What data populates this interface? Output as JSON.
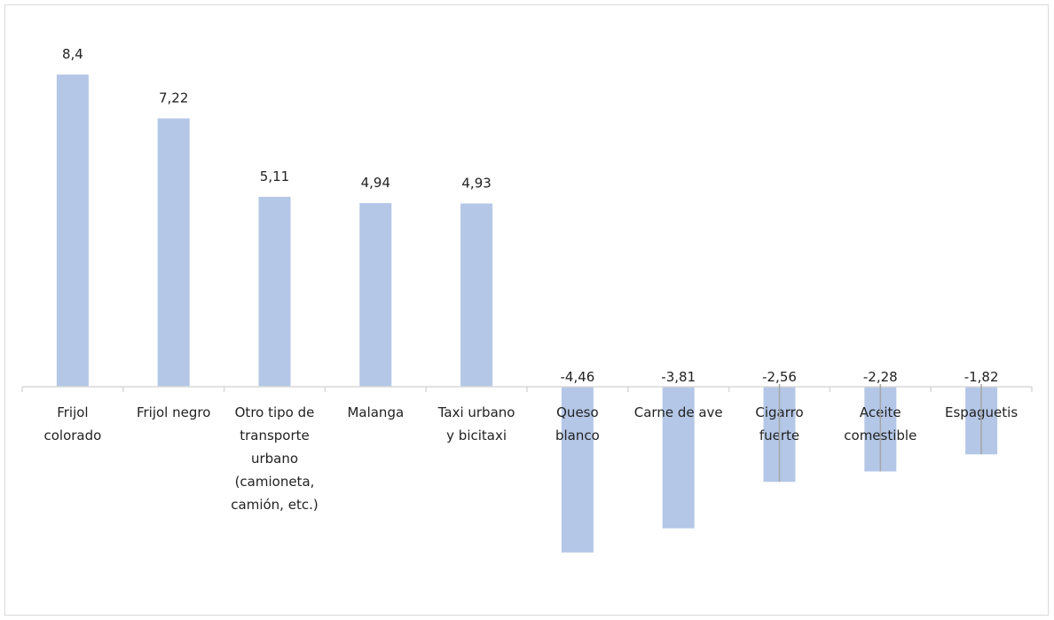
{
  "chart_data": {
    "type": "bar",
    "title": "",
    "xlabel": "",
    "ylabel": "",
    "categories": [
      [
        "Frijol",
        "colorado"
      ],
      [
        "Frijol negro"
      ],
      [
        "Otro tipo de",
        "transporte",
        "urbano",
        "(camioneta,",
        "camión, etc.)"
      ],
      [
        "Malanga"
      ],
      [
        "Taxi urbano",
        "y bicitaxi"
      ],
      [
        "Queso",
        "blanco"
      ],
      [
        "Carne de ave"
      ],
      [
        "Cigarro",
        "fuerte"
      ],
      [
        "Aceite",
        "comestible"
      ],
      [
        "Espaguetis"
      ]
    ],
    "values": [
      8.4,
      7.22,
      5.11,
      4.94,
      4.93,
      -4.46,
      -3.81,
      -2.56,
      -2.28,
      -1.82
    ],
    "data_labels": [
      "8,4",
      "7,22",
      "5,11",
      "4,94",
      "4,93",
      "-4,46",
      "-3,81",
      "-2,56",
      "-2,28",
      "-1,82"
    ],
    "leader_lines": [
      false,
      false,
      false,
      false,
      false,
      false,
      false,
      true,
      true,
      true
    ],
    "ylim": [
      -4.7,
      9
    ],
    "grid": false,
    "legend": "none",
    "bar_color": "#b4c7e7",
    "axis_color": "#d9d9d9",
    "leader_color": "#a6a6a6"
  }
}
